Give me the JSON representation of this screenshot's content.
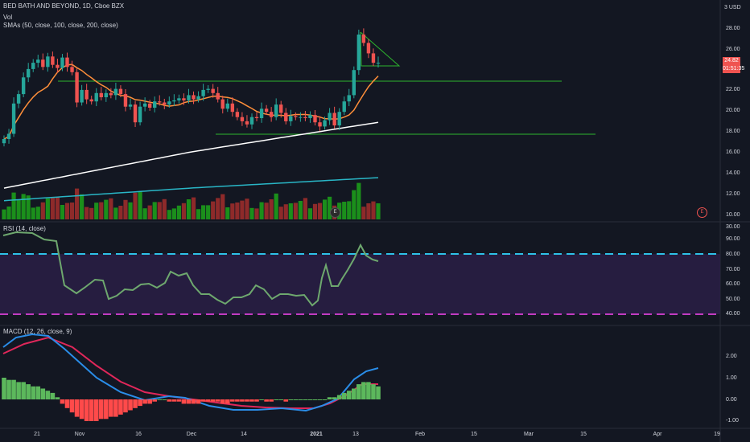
{
  "header": {
    "title": "BED BATH AND BEYOND, 1D, Cboe BZX",
    "vol_label": "Vol",
    "sma_label": "SMAs (50, close, 100, close, 200, close)"
  },
  "price_axis": {
    "currency": "USD",
    "labels": [
      "28.00",
      "26.00",
      "24.00",
      "22.00",
      "20.00",
      "18.00",
      "16.00",
      "14.00",
      "12.00",
      "10.00"
    ],
    "last_price": "24.82",
    "countdown": "01:51:35"
  },
  "rsi": {
    "label": "RSI (14, close)",
    "labels": [
      "90.00",
      "80.00",
      "70.00",
      "60.00",
      "50.00",
      "40.00",
      "30.00"
    ]
  },
  "macd": {
    "label": "MACD (12, 26, close, 9)",
    "labels": [
      "2.00",
      "1.00",
      "0.00",
      "-1.00"
    ]
  },
  "time_axis": {
    "labels": [
      "21",
      "Nov",
      "16",
      "Dec",
      "14",
      "2021",
      "13",
      "Feb",
      "15",
      "Mar",
      "15",
      "Apr",
      "19"
    ]
  },
  "earnings_marker": "E",
  "colors": {
    "background": "#131722",
    "up": "#26a69a",
    "down": "#ef5350",
    "vol_up": "#1b8f1b",
    "vol_down": "#8e2a2a",
    "sma50": "#ff8f3a",
    "sma100": "#ffffff",
    "sma200": "#29b6c6",
    "rsi_line": "#6ea86e",
    "rsi_band": "#2a1f45",
    "rsi_upper": "#2ec2e8",
    "rsi_lower": "#c23cc2",
    "macd_line": "#2a8de8",
    "signal_line": "#e0275a",
    "trendline": "#2db52d"
  },
  "chart_data": {
    "type": "candlestick",
    "closes": [
      17.5,
      18.0,
      20.9,
      21.8,
      23.4,
      24.2,
      24.8,
      25.1,
      24.4,
      25.4,
      24.6,
      24.3,
      25.3,
      24.4,
      23.9,
      21.0,
      22.2,
      21.3,
      21.1,
      21.9,
      21.5,
      21.9,
      21.7,
      22.3,
      21.8,
      20.6,
      20.8,
      19.1,
      20.6,
      20.9,
      20.5,
      21.1,
      21.0,
      20.8,
      21.1,
      21.2,
      21.4,
      21.2,
      21.7,
      21.3,
      21.6,
      22.2,
      22.3,
      21.9,
      21.3,
      20.4,
      20.9,
      20.1,
      19.6,
      19.2,
      18.9,
      19.6,
      19.5,
      20.4,
      20.1,
      19.6,
      20.8,
      20.0,
      19.2,
      19.7,
      19.6,
      19.6,
      19.5,
      19.8,
      19.1,
      18.7,
      19.3,
      20.0,
      18.8,
      20.1,
      21.1,
      21.7,
      24.1,
      27.5,
      26.7,
      25.7,
      24.8,
      24.8
    ]
  }
}
